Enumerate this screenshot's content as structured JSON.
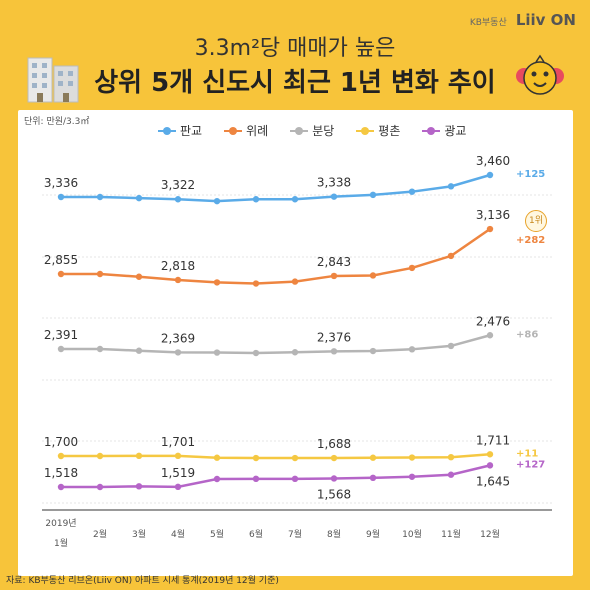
{
  "header": {
    "brand_prefix": "KB부동산",
    "brand_name": "Liiv ON",
    "title_line1": "3.3m²당 매매가 높은",
    "title_line2": "상위 5개 신도시 최근 1년 변화 추이",
    "unit": "단위: 만원/3.3㎡",
    "rank_badge": "1위"
  },
  "source": "자료: KB부동산 리브온(Liiv ON) 아파트 시세 통계(2019년 12월 기준)",
  "chart_data": {
    "type": "line",
    "categories": [
      "2019년 1월",
      "2월",
      "3월",
      "4월",
      "5월",
      "6월",
      "7월",
      "8월",
      "9월",
      "10월",
      "11월",
      "12월"
    ],
    "series": [
      {
        "name": "판교",
        "color": "#5aabe8",
        "values": [
          3336,
          3336,
          3329,
          3322,
          3310,
          3322,
          3322,
          3338,
          3348,
          3366,
          3396,
          3460
        ],
        "labels": {
          "0": "3,336",
          "3": "3,322",
          "7": "3,338",
          "11": "3,460"
        },
        "change": "+125"
      },
      {
        "name": "위례",
        "color": "#ee8540",
        "values": [
          2855,
          2855,
          2838,
          2818,
          2803,
          2796,
          2808,
          2843,
          2846,
          2893,
          2968,
          3136
        ],
        "labels": {
          "0": "2,855",
          "3": "2,818",
          "7": "2,843",
          "11": "3,136"
        },
        "change": "+282"
      },
      {
        "name": "분당",
        "color": "#b5b5b5",
        "values": [
          2391,
          2391,
          2380,
          2369,
          2368,
          2365,
          2370,
          2376,
          2378,
          2389,
          2410,
          2476
        ],
        "labels": {
          "0": "2,391",
          "3": "2,369",
          "7": "2,376",
          "11": "2,476"
        },
        "change": "+86"
      },
      {
        "name": "평촌",
        "color": "#f5c842",
        "values": [
          1700,
          1700,
          1701,
          1701,
          1690,
          1688,
          1688,
          1688,
          1690,
          1691,
          1693,
          1711
        ],
        "labels": {
          "0": "1,700",
          "3": "1,701",
          "7": "1,688",
          "11": "1,711"
        },
        "change": "+11"
      },
      {
        "name": "광교",
        "color": "#b565c8",
        "values": [
          1518,
          1518,
          1522,
          1519,
          1565,
          1566,
          1566,
          1568,
          1572,
          1578,
          1590,
          1645
        ],
        "labels": {
          "0": "1,518",
          "3": "1,519",
          "7": "1,568",
          "11": "1,645"
        },
        "change": "+127"
      }
    ]
  }
}
